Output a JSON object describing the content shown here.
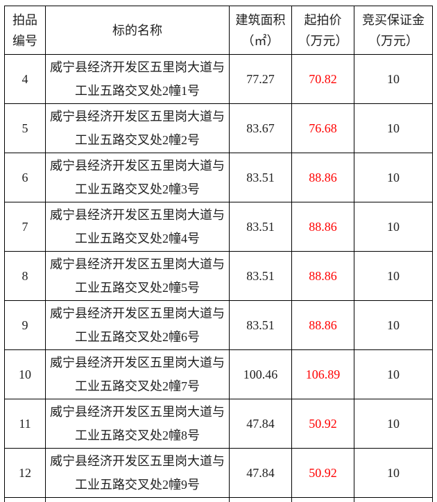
{
  "colors": {
    "price_red": "#ff0000",
    "text": "#1f1f1f",
    "border": "#000000",
    "background": "#ffffff"
  },
  "table": {
    "columns": [
      {
        "id": "lot_number",
        "lines": [
          "拍品",
          "编号"
        ]
      },
      {
        "id": "subject_name",
        "lines": [
          "标的名称"
        ]
      },
      {
        "id": "building_area",
        "lines": [
          "建筑面积",
          "（㎡）"
        ]
      },
      {
        "id": "starting_price",
        "lines": [
          "起拍价",
          "（万元）"
        ]
      },
      {
        "id": "deposit",
        "lines": [
          "竞买保证金",
          "（万元）"
        ]
      }
    ],
    "rows": [
      {
        "lot": "4",
        "name_lines": [
          "威宁县经济开发区五里岗大道与",
          "工业五路交叉处2幢1号"
        ],
        "area": "77.27",
        "price": "70.82",
        "deposit": "10"
      },
      {
        "lot": "5",
        "name_lines": [
          "威宁县经济开发区五里岗大道与",
          "工业五路交叉处2幢2号"
        ],
        "area": "83.67",
        "price": "76.68",
        "deposit": "10"
      },
      {
        "lot": "6",
        "name_lines": [
          "威宁县经济开发区五里岗大道与",
          "工业五路交叉处2幢3号"
        ],
        "area": "83.51",
        "price": "88.86",
        "deposit": "10"
      },
      {
        "lot": "7",
        "name_lines": [
          "威宁县经济开发区五里岗大道与",
          "工业五路交叉处2幢4号"
        ],
        "area": "83.51",
        "price": "88.86",
        "deposit": "10"
      },
      {
        "lot": "8",
        "name_lines": [
          "威宁县经济开发区五里岗大道与",
          "工业五路交叉处2幢5号"
        ],
        "area": "83.51",
        "price": "88.86",
        "deposit": "10"
      },
      {
        "lot": "9",
        "name_lines": [
          "威宁县经济开发区五里岗大道与",
          "工业五路交叉处2幢6号"
        ],
        "area": "83.51",
        "price": "88.86",
        "deposit": "10"
      },
      {
        "lot": "10",
        "name_lines": [
          "威宁县经济开发区五里岗大道与",
          "工业五路交叉处2幢7号"
        ],
        "area": "100.46",
        "price": "106.89",
        "deposit": "10"
      },
      {
        "lot": "11",
        "name_lines": [
          "威宁县经济开发区五里岗大道与",
          "工业五路交叉处2幢8号"
        ],
        "area": "47.84",
        "price": "50.92",
        "deposit": "10"
      },
      {
        "lot": "12",
        "name_lines": [
          "威宁县经济开发区五里岗大道与",
          "工业五路交叉处2幢9号"
        ],
        "area": "47.84",
        "price": "50.92",
        "deposit": "10"
      }
    ]
  }
}
